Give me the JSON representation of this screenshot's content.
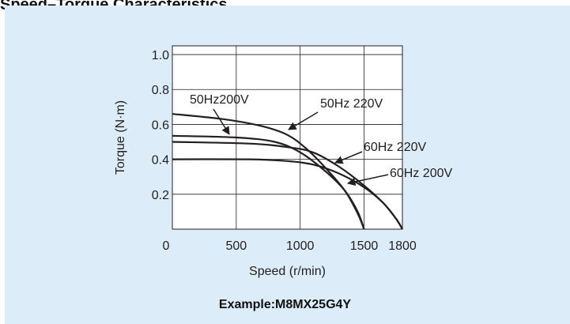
{
  "header": {
    "title": "Speed–Torque Characteristics"
  },
  "caption": "Example:M8MX25G4Y",
  "colors": {
    "panel": "#dcecf8",
    "plot_bg": "#ffffff",
    "curve": "#231f20"
  },
  "chart_data": {
    "type": "line",
    "title": "",
    "xlabel": "Speed (r/min)",
    "ylabel": "Torque (N·m)",
    "xlim": [
      0,
      1800
    ],
    "ylim": [
      0,
      1.05
    ],
    "x_ticks": [
      0,
      500,
      1000,
      1500,
      1800
    ],
    "x_tick_labels": [
      "0",
      "500",
      "1000",
      "1500",
      "1800"
    ],
    "y_ticks": [
      0.2,
      0.4,
      0.6,
      0.8,
      1.0
    ],
    "y_tick_labels": [
      "0.2",
      "0.4",
      "0.6",
      "0.8",
      "1.0"
    ],
    "grid": true,
    "series": [
      {
        "name": "50Hz200V",
        "x": [
          0,
          500,
          800,
          1000,
          1200,
          1350,
          1450,
          1500
        ],
        "y": [
          0.535,
          0.525,
          0.5,
          0.44,
          0.33,
          0.22,
          0.1,
          0.0
        ]
      },
      {
        "name": "50Hz 220V",
        "x": [
          0,
          400,
          700,
          900,
          1050,
          1200,
          1350,
          1450,
          1500
        ],
        "y": [
          0.66,
          0.63,
          0.59,
          0.54,
          0.46,
          0.35,
          0.22,
          0.09,
          0.0
        ]
      },
      {
        "name": "60Hz 220V",
        "x": [
          0,
          600,
          900,
          1100,
          1300,
          1500,
          1650,
          1750,
          1800
        ],
        "y": [
          0.5,
          0.49,
          0.47,
          0.44,
          0.36,
          0.25,
          0.15,
          0.06,
          0.0
        ]
      },
      {
        "name": "60Hz 200V",
        "x": [
          0,
          600,
          900,
          1100,
          1300,
          1500,
          1650,
          1750,
          1800
        ],
        "y": [
          0.4,
          0.4,
          0.39,
          0.37,
          0.32,
          0.24,
          0.15,
          0.06,
          0.0
        ]
      }
    ],
    "annotations": [
      "50Hz200V",
      "50Hz 220V",
      "60Hz 220V",
      "60Hz 200V"
    ]
  }
}
